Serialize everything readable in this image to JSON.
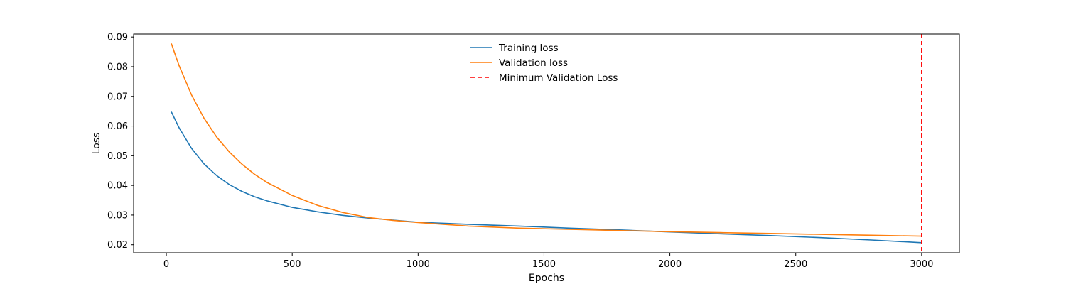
{
  "chart_data": {
    "type": "line",
    "title": "",
    "xlabel": "Epochs",
    "ylabel": "Loss",
    "xlim": [
      -130,
      3150
    ],
    "ylim": [
      0.0173,
      0.091
    ],
    "xticks": [
      0,
      500,
      1000,
      1500,
      2000,
      2500,
      3000
    ],
    "xtick_labels": [
      "0",
      "500",
      "1000",
      "1500",
      "2000",
      "2500",
      "3000"
    ],
    "yticks": [
      0.02,
      0.03,
      0.04,
      0.05,
      0.06,
      0.07,
      0.08,
      0.09
    ],
    "ytick_labels": [
      "0.02",
      "0.03",
      "0.04",
      "0.05",
      "0.06",
      "0.07",
      "0.08",
      "0.09"
    ],
    "grid": false,
    "legend_position": "top-center",
    "series": [
      {
        "name": "Training loss",
        "color": "#1f77b4",
        "style": "solid",
        "x": [
          20,
          50,
          100,
          150,
          200,
          250,
          300,
          350,
          400,
          500,
          600,
          700,
          800,
          900,
          1000,
          1200,
          1400,
          1600,
          1800,
          2000,
          2200,
          2400,
          2600,
          2800,
          3000
        ],
        "y": [
          0.0648,
          0.0595,
          0.0525,
          0.0472,
          0.0433,
          0.0403,
          0.038,
          0.0362,
          0.0348,
          0.0326,
          0.0311,
          0.0299,
          0.029,
          0.0283,
          0.0276,
          0.0269,
          0.0263,
          0.0256,
          0.025,
          0.0243,
          0.0237,
          0.0231,
          0.0224,
          0.0216,
          0.0207
        ]
      },
      {
        "name": "Validation loss",
        "color": "#ff7f0e",
        "style": "solid",
        "x": [
          20,
          50,
          100,
          150,
          200,
          250,
          300,
          350,
          400,
          500,
          600,
          700,
          800,
          900,
          1000,
          1200,
          1400,
          1600,
          1800,
          2000,
          2200,
          2400,
          2600,
          2800,
          3000
        ],
        "y": [
          0.0878,
          0.0805,
          0.0705,
          0.0626,
          0.0563,
          0.0513,
          0.0472,
          0.0438,
          0.041,
          0.0366,
          0.0333,
          0.0309,
          0.0292,
          0.0282,
          0.0275,
          0.0263,
          0.0256,
          0.0252,
          0.0248,
          0.0244,
          0.0241,
          0.0238,
          0.0235,
          0.0232,
          0.0229
        ]
      }
    ],
    "vlines": [
      {
        "name": "Minimum Validation Loss",
        "x": 3000,
        "color": "#ff0000",
        "style": "dashed"
      }
    ]
  }
}
